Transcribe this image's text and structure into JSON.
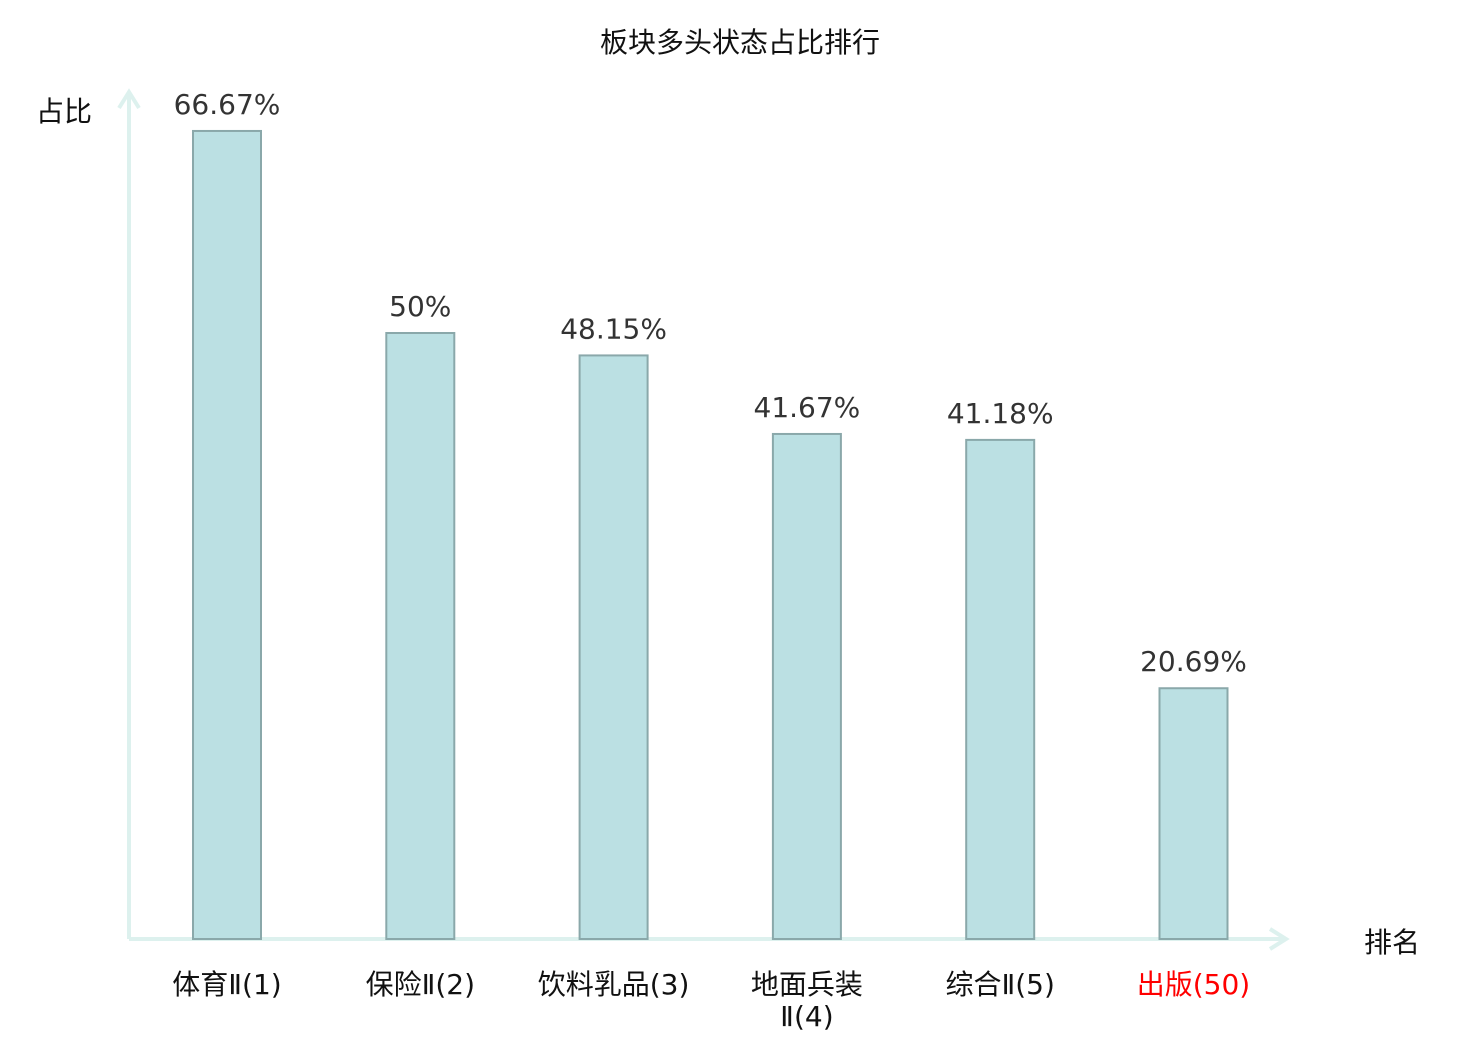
{
  "chart_data": {
    "type": "bar",
    "title": "板块多头状态占比排行",
    "ylabel": "占比",
    "xlabel": "排名",
    "categories": [
      "体育Ⅱ(1)",
      "保险Ⅱ(2)",
      "饮料乳品(3)",
      "地面兵装Ⅱ(4)",
      "综合Ⅱ(5)",
      "出版(50)"
    ],
    "values": [
      66.67,
      50,
      48.15,
      41.67,
      41.18,
      20.69
    ],
    "value_labels": [
      "66.67%",
      "50%",
      "48.15%",
      "41.67%",
      "41.18%",
      "20.69%"
    ],
    "highlight_index": 5,
    "ylim": [
      0,
      70
    ],
    "grid": false,
    "colors": {
      "bar_fill": "#bbe0e3",
      "bar_stroke": "#8aa8aa",
      "axis": "#ddf1ee",
      "highlight_text": "#ff0000",
      "text": "#333333"
    }
  }
}
